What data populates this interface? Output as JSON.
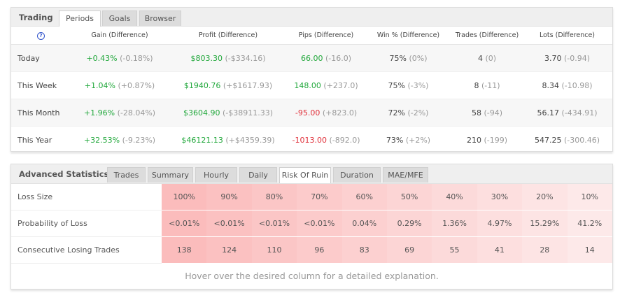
{
  "trading": {
    "title": "Trading",
    "tabs": [
      "Periods",
      "Goals",
      "Browser"
    ],
    "help_icon": "?",
    "columns": [
      "Gain (Difference)",
      "Profit (Difference)",
      "Pips (Difference)",
      "Win % (Difference)",
      "Trades (Difference)",
      "Lots (Difference)"
    ],
    "rows": [
      {
        "period": "Today",
        "gain": "+0.43%",
        "gain_d": "(-0.18%)",
        "profit": "$803.30",
        "profit_d": "(-$334.16)",
        "pips": "66.00",
        "pips_d": "(-16.0)",
        "win": "75%",
        "win_d": "(0%)",
        "trades": "4",
        "trades_d": "(0)",
        "lots": "3.70",
        "lots_d": "(-0.94)",
        "pips_color": "green"
      },
      {
        "period": "This Week",
        "gain": "+1.04%",
        "gain_d": "(+0.87%)",
        "profit": "$1940.76",
        "profit_d": "(+$1617.93)",
        "pips": "148.00",
        "pips_d": "(+237.0)",
        "win": "75%",
        "win_d": "(-3%)",
        "trades": "8",
        "trades_d": "(-11)",
        "lots": "8.34",
        "lots_d": "(-10.98)",
        "pips_color": "green"
      },
      {
        "period": "This Month",
        "gain": "+1.96%",
        "gain_d": "(-28.04%)",
        "profit": "$3604.90",
        "profit_d": "(-$38911.33)",
        "pips": "-95.00",
        "pips_d": "(+823.0)",
        "win": "72%",
        "win_d": "(-2%)",
        "trades": "58",
        "trades_d": "(-94)",
        "lots": "56.17",
        "lots_d": "(-434.91)",
        "pips_color": "red"
      },
      {
        "period": "This Year",
        "gain": "+32.53%",
        "gain_d": "(-9.23%)",
        "profit": "$46121.13",
        "profit_d": "(+$4359.39)",
        "pips": "-1013.00",
        "pips_d": "(-892.0)",
        "win": "73%",
        "win_d": "(+2%)",
        "trades": "210",
        "trades_d": "(-199)",
        "lots": "547.25",
        "lots_d": "(-300.46)",
        "pips_color": "red"
      }
    ]
  },
  "advanced": {
    "title": "Advanced Statistics",
    "tabs": [
      "Trades",
      "Summary",
      "Hourly",
      "Daily",
      "Risk Of Ruin",
      "Duration",
      "MAE/MFE"
    ],
    "active_tab": "Risk Of Ruin",
    "rows": [
      {
        "label": "Loss Size",
        "values": [
          "100%",
          "90%",
          "80%",
          "70%",
          "60%",
          "50%",
          "40%",
          "30%",
          "20%",
          "10%"
        ]
      },
      {
        "label": "Probability of Loss",
        "values": [
          "<0.01%",
          "<0.01%",
          "<0.01%",
          "<0.01%",
          "0.04%",
          "0.29%",
          "1.36%",
          "4.97%",
          "15.29%",
          "41.2%"
        ]
      },
      {
        "label": "Consecutive Losing Trades",
        "values": [
          "138",
          "124",
          "110",
          "96",
          "83",
          "69",
          "55",
          "41",
          "28",
          "14"
        ]
      }
    ],
    "footer": "Hover over the desired column for a detailed explanation."
  },
  "colors": {
    "green": "#22a83c",
    "red": "#e0303a",
    "heat_start": "#fbbcbc",
    "heat_end": "#fde9e9"
  }
}
